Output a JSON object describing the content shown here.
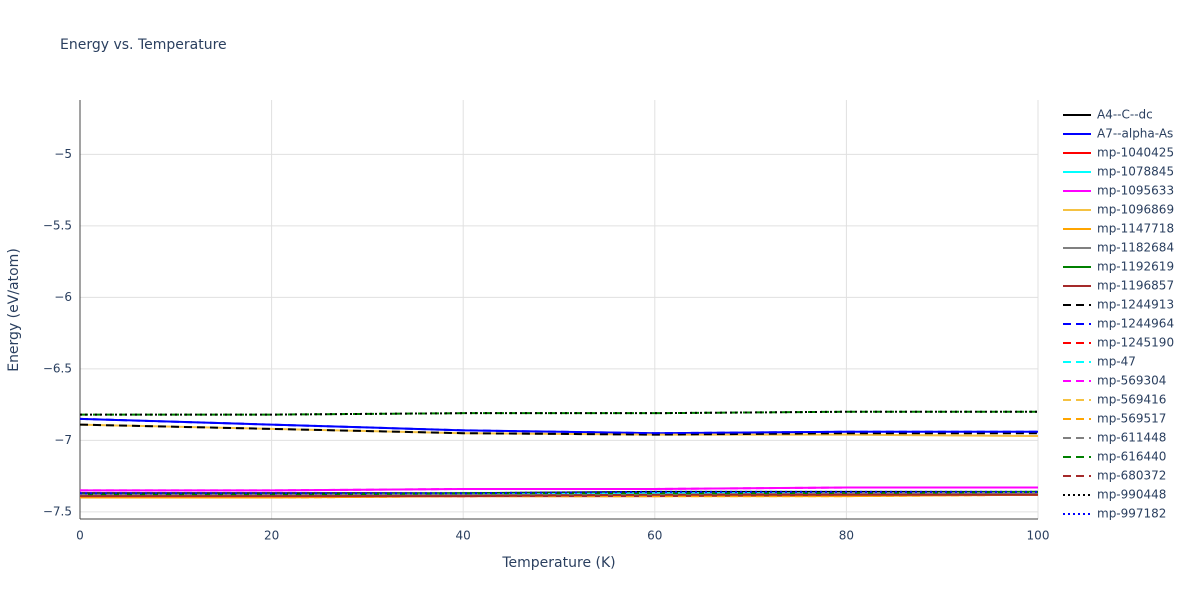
{
  "chart_data": {
    "type": "line",
    "title": "Energy vs. Temperature",
    "x_label": "Temperature (K)",
    "y_label": "Energy (eV/atom)",
    "x": [
      0,
      20,
      40,
      60,
      80,
      100
    ],
    "xlim": [
      0,
      100
    ],
    "xticks": [
      0,
      20,
      40,
      60,
      80,
      100
    ],
    "ylim": [
      -7.55,
      -4.62
    ],
    "yticks": [
      {
        "value": -5,
        "label": "−5"
      },
      {
        "value": -5.5,
        "label": "−5.5"
      },
      {
        "value": -6,
        "label": "−6"
      },
      {
        "value": -6.5,
        "label": "−6.5"
      },
      {
        "value": -7,
        "label": "−7"
      },
      {
        "value": -7.5,
        "label": "−7.5"
      }
    ],
    "grid": true,
    "legend": "right",
    "series": [
      {
        "name": "A4--C--dc",
        "color": "#000000",
        "dash": "solid",
        "values": [
          -7.37,
          -7.37,
          -7.37,
          -7.36,
          -7.36,
          -7.36
        ]
      },
      {
        "name": "A7--alpha-As",
        "color": "#0000ff",
        "dash": "solid",
        "values": [
          -6.85,
          -6.89,
          -6.93,
          -6.95,
          -6.94,
          -6.94
        ]
      },
      {
        "name": "mp-1040425",
        "color": "#ff0000",
        "dash": "solid",
        "values": [
          -7.39,
          -7.39,
          -7.39,
          -7.38,
          -7.38,
          -7.38
        ]
      },
      {
        "name": "mp-1078845",
        "color": "#00ffff",
        "dash": "solid",
        "values": [
          -7.38,
          -7.38,
          -7.38,
          -7.37,
          -7.37,
          -7.37
        ]
      },
      {
        "name": "mp-1095633",
        "color": "#ff00ff",
        "dash": "solid",
        "values": [
          -7.35,
          -7.35,
          -7.34,
          -7.34,
          -7.33,
          -7.33
        ]
      },
      {
        "name": "mp-1096869",
        "color": "#f5c242",
        "dash": "solid",
        "values": [
          -6.89,
          -6.92,
          -6.95,
          -6.96,
          -6.96,
          -6.97
        ]
      },
      {
        "name": "mp-1147718",
        "color": "#ffa500",
        "dash": "solid",
        "values": [
          -7.4,
          -7.4,
          -7.39,
          -7.39,
          -7.39,
          -7.38
        ]
      },
      {
        "name": "mp-1182684",
        "color": "#808080",
        "dash": "solid",
        "values": [
          -7.38,
          -7.38,
          -7.38,
          -7.38,
          -7.37,
          -7.37
        ]
      },
      {
        "name": "mp-1192619",
        "color": "#008000",
        "dash": "solid",
        "values": [
          -7.38,
          -7.38,
          -7.37,
          -7.37,
          -7.37,
          -7.36
        ]
      },
      {
        "name": "mp-1196857",
        "color": "#a52a2a",
        "dash": "solid",
        "values": [
          -7.39,
          -7.39,
          -7.39,
          -7.39,
          -7.38,
          -7.38
        ]
      },
      {
        "name": "mp-1244913",
        "color": "#000000",
        "dash": "dash",
        "values": [
          -6.89,
          -6.92,
          -6.95,
          -6.96,
          -6.95,
          -6.95
        ]
      },
      {
        "name": "mp-1244964",
        "color": "#0000ff",
        "dash": "dash",
        "values": [
          -6.85,
          -6.89,
          -6.93,
          -6.95,
          -6.94,
          -6.94
        ]
      },
      {
        "name": "mp-1245190",
        "color": "#ff0000",
        "dash": "dash",
        "values": [
          -7.39,
          -7.39,
          -7.39,
          -7.38,
          -7.38,
          -7.38
        ]
      },
      {
        "name": "mp-47",
        "color": "#00ffff",
        "dash": "dash",
        "values": [
          -7.38,
          -7.38,
          -7.38,
          -7.37,
          -7.37,
          -7.37
        ]
      },
      {
        "name": "mp-569304",
        "color": "#ff00ff",
        "dash": "dash",
        "values": [
          -7.35,
          -7.35,
          -7.34,
          -7.34,
          -7.33,
          -7.33
        ]
      },
      {
        "name": "mp-569416",
        "color": "#f5c242",
        "dash": "dash",
        "values": [
          -7.4,
          -7.4,
          -7.39,
          -7.39,
          -7.39,
          -7.38
        ]
      },
      {
        "name": "mp-569517",
        "color": "#ffa500",
        "dash": "dash",
        "values": [
          -7.4,
          -7.4,
          -7.39,
          -7.39,
          -7.39,
          -7.38
        ]
      },
      {
        "name": "mp-611448",
        "color": "#808080",
        "dash": "dash",
        "values": [
          -7.38,
          -7.38,
          -7.38,
          -7.38,
          -7.37,
          -7.37
        ]
      },
      {
        "name": "mp-616440",
        "color": "#008000",
        "dash": "dash",
        "values": [
          -6.82,
          -6.82,
          -6.81,
          -6.81,
          -6.8,
          -6.8
        ]
      },
      {
        "name": "mp-680372",
        "color": "#a52a2a",
        "dash": "dash",
        "values": [
          -7.39,
          -7.39,
          -7.39,
          -7.38,
          -7.38,
          -7.38
        ]
      },
      {
        "name": "mp-990448",
        "color": "#000000",
        "dash": "dot",
        "values": [
          -6.82,
          -6.82,
          -6.81,
          -6.81,
          -6.8,
          -6.8
        ]
      },
      {
        "name": "mp-997182",
        "color": "#0000ff",
        "dash": "dot",
        "values": [
          -7.37,
          -7.37,
          -7.37,
          -7.36,
          -7.36,
          -7.36
        ]
      }
    ]
  }
}
